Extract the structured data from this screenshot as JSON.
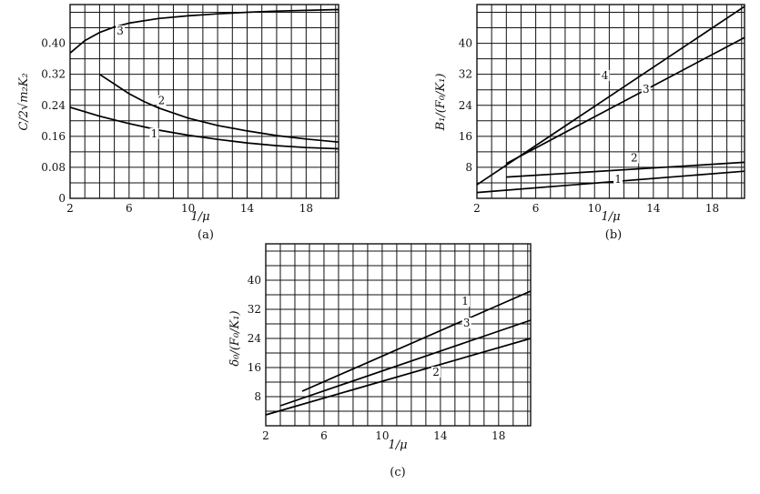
{
  "chart_data": [
    {
      "panel_label": "(a)",
      "type": "line",
      "xlabel": "1/μ",
      "ylabel": "C/2√m₂K₂",
      "xlim": [
        2,
        20.2
      ],
      "ylim": [
        0,
        0.5
      ],
      "xticks": [
        2,
        6,
        10,
        14,
        18
      ],
      "xtick_labels": [
        "2",
        "6",
        "10",
        "14",
        "18"
      ],
      "yticks": [
        0,
        0.08,
        0.16,
        0.24,
        0.32,
        0.4
      ],
      "ytick_labels": [
        "0",
        "0.08",
        "0.16",
        "0.24",
        "0.32",
        "0.40"
      ],
      "x_grid_step": 1,
      "y_grid_step": 0.04,
      "grid": true,
      "series": [
        {
          "name": "1",
          "x": [
            2,
            4,
            6,
            8,
            10,
            12,
            14,
            16,
            18,
            20.2
          ],
          "y": [
            0.235,
            0.212,
            0.193,
            0.176,
            0.163,
            0.152,
            0.143,
            0.136,
            0.131,
            0.128
          ]
        },
        {
          "name": "2",
          "x": [
            4,
            5,
            6,
            7,
            8,
            10,
            12,
            14,
            16,
            18,
            20.2
          ],
          "y": [
            0.32,
            0.295,
            0.27,
            0.25,
            0.233,
            0.207,
            0.188,
            0.174,
            0.162,
            0.153,
            0.145
          ]
        },
        {
          "name": "3",
          "x": [
            2,
            3,
            4,
            5,
            6,
            8,
            10,
            12,
            14,
            16,
            18,
            20.2
          ],
          "y": [
            0.375,
            0.407,
            0.428,
            0.442,
            0.452,
            0.464,
            0.471,
            0.476,
            0.48,
            0.483,
            0.485,
            0.487
          ]
        }
      ],
      "series_labels": [
        {
          "name": "1",
          "x": 7.7,
          "y": 0.16
        },
        {
          "name": "2",
          "x": 8.2,
          "y": 0.245
        },
        {
          "name": "3",
          "x": 5.4,
          "y": 0.425
        }
      ]
    },
    {
      "panel_label": "(b)",
      "type": "line",
      "xlabel": "1/μ",
      "ylabel": "B₁/(F₀/K₁)",
      "xlim": [
        2,
        20.2
      ],
      "ylim": [
        0,
        50
      ],
      "xticks": [
        2,
        6,
        10,
        14,
        18
      ],
      "xtick_labels": [
        "2",
        "6",
        "10",
        "14",
        "18"
      ],
      "yticks": [
        8,
        16,
        24,
        32,
        40
      ],
      "ytick_labels": [
        "8",
        "16",
        "24",
        "32",
        "40"
      ],
      "x_grid_step": 1,
      "y_grid_step": 4,
      "grid": true,
      "series": [
        {
          "name": "1",
          "x": [
            2,
            20.2
          ],
          "y": [
            1.5,
            7.0
          ]
        },
        {
          "name": "2",
          "x": [
            4,
            20.2
          ],
          "y": [
            5.5,
            9.3
          ]
        },
        {
          "name": "3",
          "x": [
            4,
            20.2
          ],
          "y": [
            9.0,
            41.5
          ]
        },
        {
          "name": "4",
          "x": [
            2,
            20.2
          ],
          "y": [
            3.5,
            49.5
          ]
        }
      ],
      "series_labels": [
        {
          "name": "1",
          "x": 11.6,
          "y": 4.2
        },
        {
          "name": "2",
          "x": 12.7,
          "y": 9.7
        },
        {
          "name": "3",
          "x": 13.5,
          "y": 27.5
        },
        {
          "name": "4",
          "x": 10.7,
          "y": 31.0
        }
      ]
    },
    {
      "panel_label": "(c)",
      "type": "line",
      "xlabel": "1/μ",
      "ylabel": "δ₀/(F₀/K₁)",
      "xlim": [
        2,
        20.2
      ],
      "ylim": [
        0,
        50
      ],
      "xticks": [
        2,
        6,
        10,
        14,
        18
      ],
      "xtick_labels": [
        "2",
        "6",
        "10",
        "14",
        "18"
      ],
      "yticks": [
        8,
        16,
        24,
        32,
        40
      ],
      "ytick_labels": [
        "8",
        "16",
        "24",
        "32",
        "40"
      ],
      "x_grid_step": 1,
      "y_grid_step": 4,
      "grid": true,
      "series": [
        {
          "name": "1",
          "x": [
            4.5,
            20.2
          ],
          "y": [
            9.5,
            37.0
          ]
        },
        {
          "name": "2",
          "x": [
            2,
            20.2
          ],
          "y": [
            3.0,
            24.0
          ]
        },
        {
          "name": "3",
          "x": [
            3,
            20.2
          ],
          "y": [
            5.5,
            29.0
          ]
        }
      ],
      "series_labels": [
        {
          "name": "1",
          "x": 15.7,
          "y": 33.5
        },
        {
          "name": "2",
          "x": 13.7,
          "y": 14.0
        },
        {
          "name": "3",
          "x": 15.8,
          "y": 27.5
        }
      ]
    }
  ]
}
